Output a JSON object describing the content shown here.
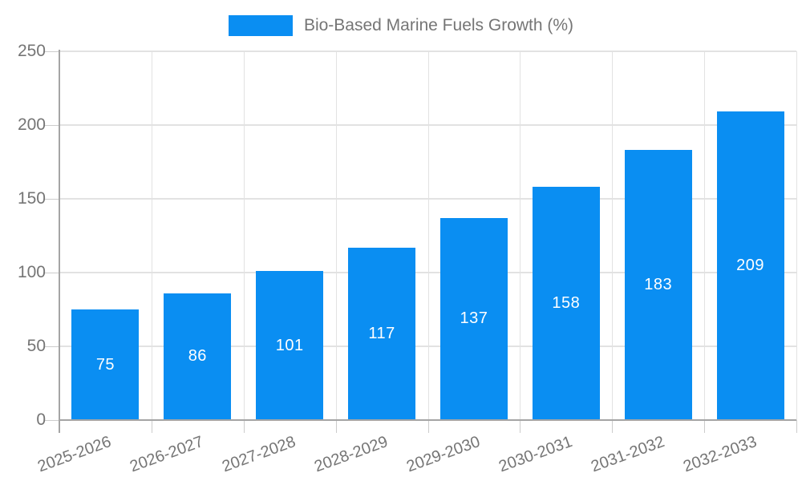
{
  "legend": {
    "label": "Bio-Based Marine Fuels Growth (%)"
  },
  "chart_data": {
    "type": "bar",
    "title": "Bio-Based Marine Fuels Growth (%)",
    "categories": [
      "2025-2026",
      "2026-2027",
      "2027-2028",
      "2028-2029",
      "2029-2030",
      "2030-2031",
      "2031-2032",
      "2032-2033"
    ],
    "values": [
      75,
      86,
      101,
      117,
      137,
      158,
      183,
      209
    ],
    "xlabel": "",
    "ylabel": "",
    "ylim": [
      0,
      250
    ],
    "yticks": [
      0,
      50,
      100,
      150,
      200,
      250
    ],
    "grid": true,
    "legend_position": "top-center",
    "x_label_rotation_deg": -20,
    "colors": {
      "bar": "#0a8ef2",
      "value_label": "#ffffff",
      "axis_text": "#757575",
      "gridline": "#e2e2e2",
      "axis_line": "#a5a5a5",
      "tick": "#cccccc"
    }
  }
}
